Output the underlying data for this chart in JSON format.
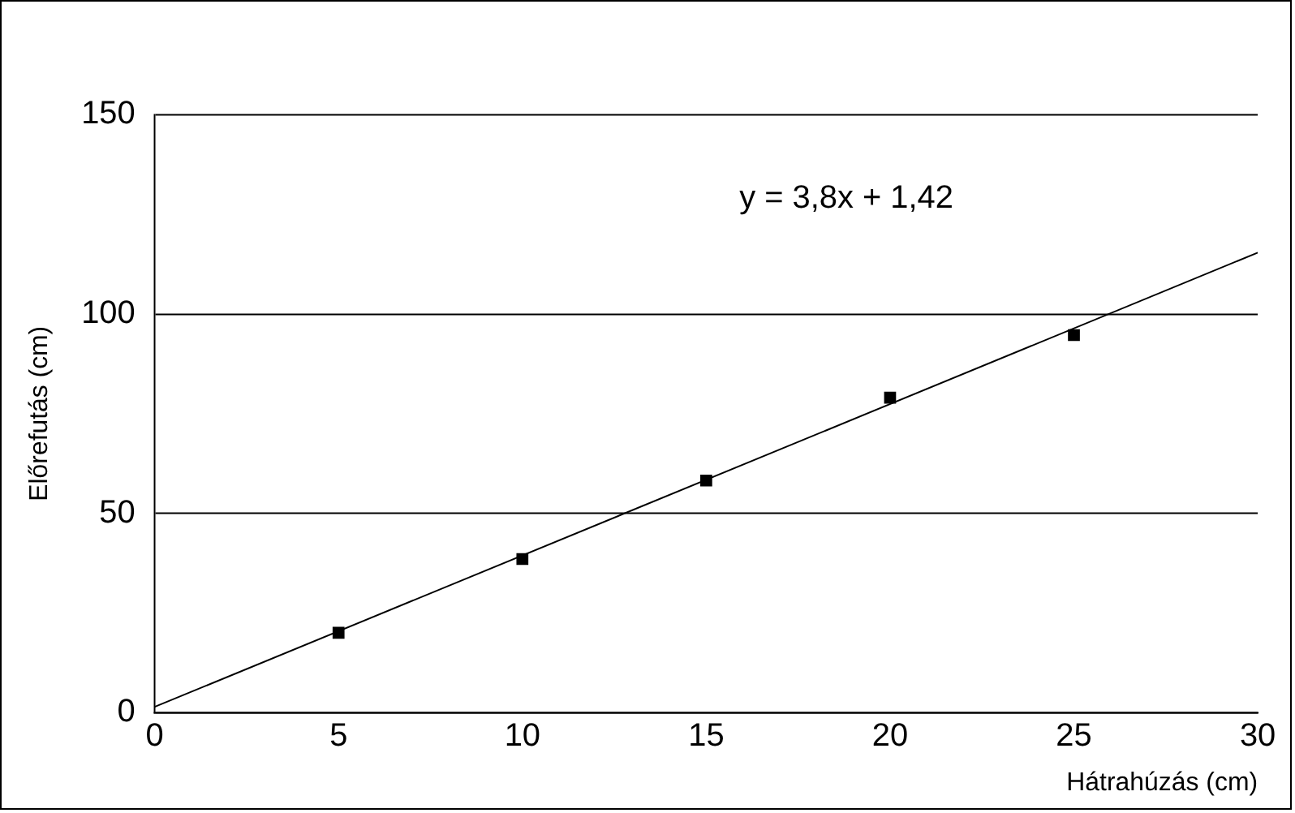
{
  "chart_data": {
    "type": "scatter",
    "xlabel": "Hátrahúzás (cm)",
    "ylabel": "Előrefutás (cm)",
    "annotations": [
      "y = 3,8x + 1,42"
    ],
    "x": [
      5,
      10,
      15,
      20,
      25
    ],
    "series": [
      {
        "color": "#000000",
        "values": [
          20,
          38.5,
          58.2,
          79,
          94.7
        ],
        "marker": "square"
      },
      {
        "type": "line",
        "color": "#000000",
        "x": [
          0,
          30
        ],
        "values": [
          1.4,
          115.4
        ],
        "marker": "none"
      }
    ],
    "xlim": [
      0,
      30
    ],
    "xticks": [
      0,
      5,
      10,
      15,
      20,
      25,
      30
    ],
    "ylim": [
      0,
      150
    ],
    "yticks": [
      0,
      50,
      100,
      150
    ],
    "grid": "y",
    "legend": false
  }
}
